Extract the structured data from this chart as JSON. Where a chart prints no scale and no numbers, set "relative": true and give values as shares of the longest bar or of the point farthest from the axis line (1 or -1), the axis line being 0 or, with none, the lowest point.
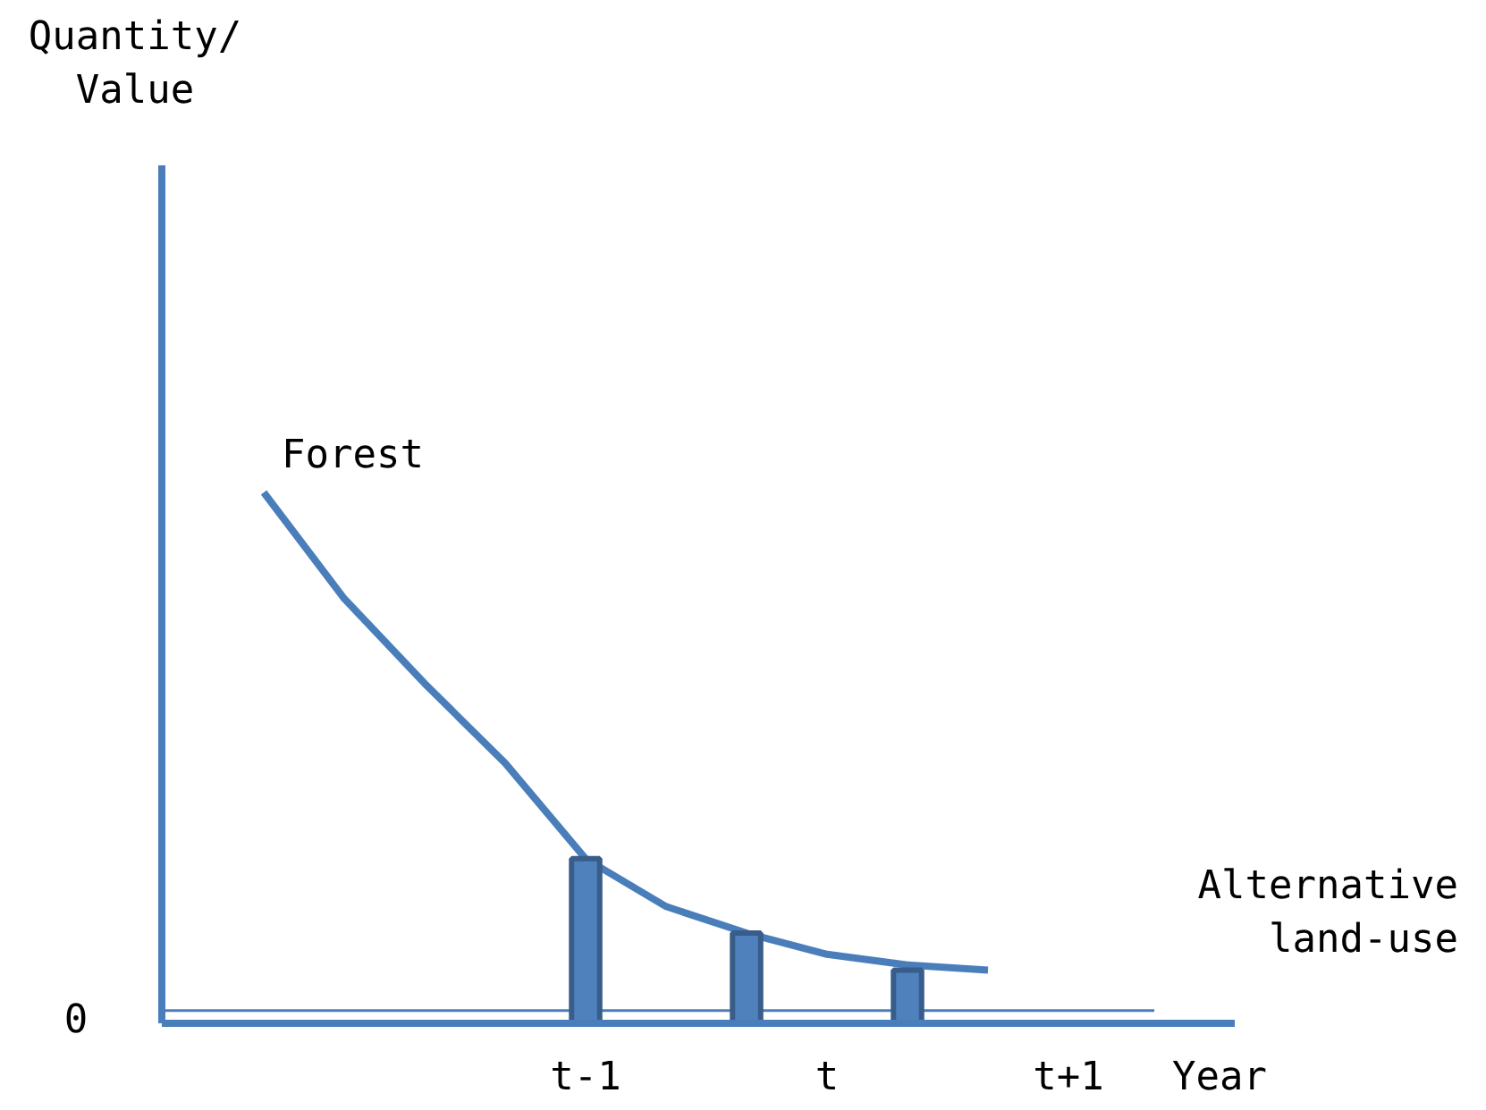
{
  "chart_data": {
    "type": "line",
    "relative": true,
    "xlabel": "Year",
    "categories": [
      null,
      null,
      null,
      null,
      "t-1",
      null,
      null,
      "t",
      null,
      null,
      "t+1"
    ],
    "series": [
      {
        "name": "Forest",
        "color": "#4a7ebb",
        "values": [
          1.0,
          0.8,
          0.64,
          0.49,
          0.31,
          0.22,
          0.17,
          0.13,
          0.11,
          0.1,
          null
        ]
      },
      {
        "type": "bar",
        "color": "#4f81bd",
        "values": [
          null,
          null,
          null,
          null,
          0.31,
          null,
          0.17,
          null,
          0.1,
          null,
          null
        ]
      }
    ],
    "ref_lines": [
      {
        "axis": "y",
        "value": 0.024,
        "label": "Alternative land-use",
        "color": "#4a7ebb"
      }
    ],
    "annotations": [
      "Quantity/ Value",
      "0"
    ],
    "grid": false,
    "marker": "none",
    "line_style": "solid"
  }
}
